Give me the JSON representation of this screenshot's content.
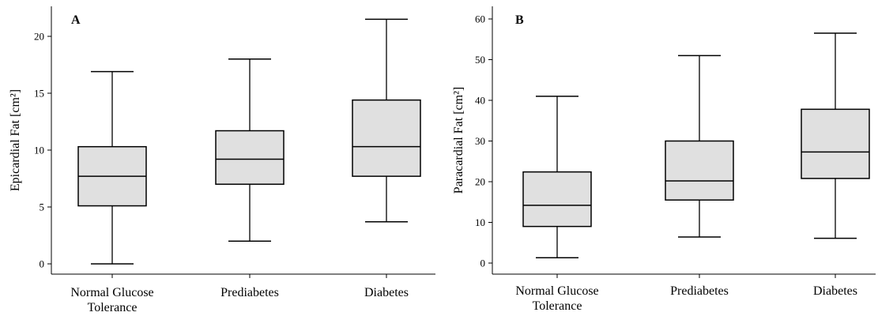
{
  "chart_data": [
    {
      "type": "box",
      "panel_label": "A",
      "ylabel": "Epicardial Fat [cm²]",
      "ylim": [
        0,
        22
      ],
      "yticks": [
        0,
        5,
        10,
        15,
        20
      ],
      "categories": [
        [
          "Normal Glucose",
          "Tolerance"
        ],
        [
          "Prediabetes"
        ],
        [
          "Diabetes"
        ]
      ],
      "boxes": [
        {
          "min": 0.0,
          "q1": 5.1,
          "median": 7.7,
          "q3": 10.3,
          "max": 16.9
        },
        {
          "min": 2.0,
          "q1": 7.0,
          "median": 9.2,
          "q3": 11.7,
          "max": 18.0
        },
        {
          "min": 3.7,
          "q1": 7.7,
          "median": 10.3,
          "q3": 14.4,
          "max": 21.5
        }
      ]
    },
    {
      "type": "box",
      "panel_label": "B",
      "ylabel": "Paracardial Fat [cm²]",
      "ylim": [
        0,
        60
      ],
      "yticks": [
        0,
        10,
        20,
        30,
        40,
        50,
        60
      ],
      "categories": [
        [
          "Normal Glucose",
          "Tolerance"
        ],
        [
          "Prediabetes"
        ],
        [
          "Diabetes"
        ]
      ],
      "boxes": [
        {
          "min": 1.3,
          "q1": 9.0,
          "median": 14.2,
          "q3": 22.4,
          "max": 41.0
        },
        {
          "min": 6.4,
          "q1": 15.5,
          "median": 20.2,
          "q3": 30.0,
          "max": 51.0
        },
        {
          "min": 6.1,
          "q1": 20.8,
          "median": 27.3,
          "q3": 37.8,
          "max": 56.5
        }
      ]
    }
  ]
}
